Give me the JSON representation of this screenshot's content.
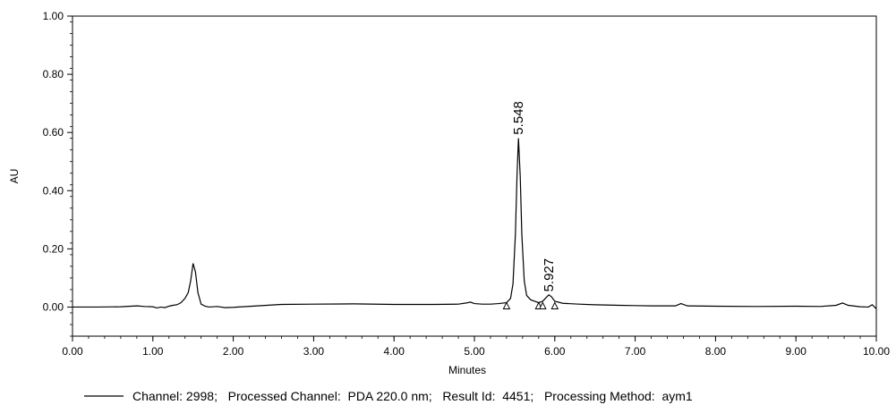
{
  "chart_data": {
    "type": "line",
    "xlabel": "Minutes",
    "ylabel": "AU",
    "xlim": [
      0,
      10
    ],
    "ylim": [
      -0.1,
      1.0
    ],
    "x_ticks": [
      "0.00",
      "1.00",
      "2.00",
      "3.00",
      "4.00",
      "5.00",
      "6.00",
      "7.00",
      "8.00",
      "9.00",
      "10.00"
    ],
    "y_ticks": [
      "0.00",
      "0.20",
      "0.40",
      "0.60",
      "0.80",
      "1.00"
    ],
    "grid": false,
    "legend_position": "bottom",
    "legend": {
      "text": "Channel: 2998;   Processed Channel:  PDA 220.0 nm;   Result Id:  4451;   Processing Method:  aym1"
    },
    "peak_labels": [
      {
        "text": "5.548",
        "x": 5.548,
        "y": 0.58
      },
      {
        "text": "5.927",
        "x": 5.927,
        "y": 0.04
      }
    ],
    "baseline_markers": [
      5.4,
      5.8,
      5.85,
      6.0
    ],
    "series": [
      {
        "color": "#000000",
        "points": [
          [
            0.0,
            0.0
          ],
          [
            0.3,
            0.0
          ],
          [
            0.6,
            0.001
          ],
          [
            0.8,
            0.004
          ],
          [
            0.9,
            0.002
          ],
          [
            1.0,
            0.001
          ],
          [
            1.05,
            -0.003
          ],
          [
            1.1,
            0.0
          ],
          [
            1.15,
            -0.002
          ],
          [
            1.2,
            0.003
          ],
          [
            1.25,
            0.006
          ],
          [
            1.3,
            0.008
          ],
          [
            1.35,
            0.015
          ],
          [
            1.4,
            0.03
          ],
          [
            1.44,
            0.05
          ],
          [
            1.47,
            0.09
          ],
          [
            1.5,
            0.15
          ],
          [
            1.53,
            0.12
          ],
          [
            1.56,
            0.05
          ],
          [
            1.6,
            0.01
          ],
          [
            1.65,
            0.003
          ],
          [
            1.7,
            0.0
          ],
          [
            1.8,
            0.002
          ],
          [
            1.9,
            -0.002
          ],
          [
            2.0,
            -0.001
          ],
          [
            2.3,
            0.004
          ],
          [
            2.6,
            0.009
          ],
          [
            3.0,
            0.01
          ],
          [
            3.5,
            0.011
          ],
          [
            4.0,
            0.009
          ],
          [
            4.5,
            0.009
          ],
          [
            4.8,
            0.01
          ],
          [
            4.9,
            0.014
          ],
          [
            4.95,
            0.017
          ],
          [
            5.0,
            0.012
          ],
          [
            5.1,
            0.01
          ],
          [
            5.2,
            0.01
          ],
          [
            5.3,
            0.012
          ],
          [
            5.4,
            0.015
          ],
          [
            5.45,
            0.03
          ],
          [
            5.48,
            0.08
          ],
          [
            5.51,
            0.25
          ],
          [
            5.53,
            0.45
          ],
          [
            5.548,
            0.58
          ],
          [
            5.57,
            0.45
          ],
          [
            5.59,
            0.25
          ],
          [
            5.62,
            0.09
          ],
          [
            5.65,
            0.04
          ],
          [
            5.7,
            0.025
          ],
          [
            5.75,
            0.02
          ],
          [
            5.8,
            0.015
          ],
          [
            5.85,
            0.02
          ],
          [
            5.9,
            0.035
          ],
          [
            5.927,
            0.042
          ],
          [
            5.96,
            0.035
          ],
          [
            6.0,
            0.02
          ],
          [
            6.1,
            0.013
          ],
          [
            6.3,
            0.01
          ],
          [
            6.5,
            0.008
          ],
          [
            6.8,
            0.006
          ],
          [
            7.0,
            0.005
          ],
          [
            7.2,
            0.004
          ],
          [
            7.5,
            0.004
          ],
          [
            7.57,
            0.012
          ],
          [
            7.65,
            0.004
          ],
          [
            8.0,
            0.003
          ],
          [
            8.5,
            0.002
          ],
          [
            9.0,
            0.003
          ],
          [
            9.3,
            0.002
          ],
          [
            9.5,
            0.006
          ],
          [
            9.58,
            0.014
          ],
          [
            9.65,
            0.006
          ],
          [
            9.8,
            0.001
          ],
          [
            9.9,
            0.0
          ],
          [
            9.95,
            0.008
          ],
          [
            10.0,
            -0.006
          ]
        ]
      }
    ]
  }
}
